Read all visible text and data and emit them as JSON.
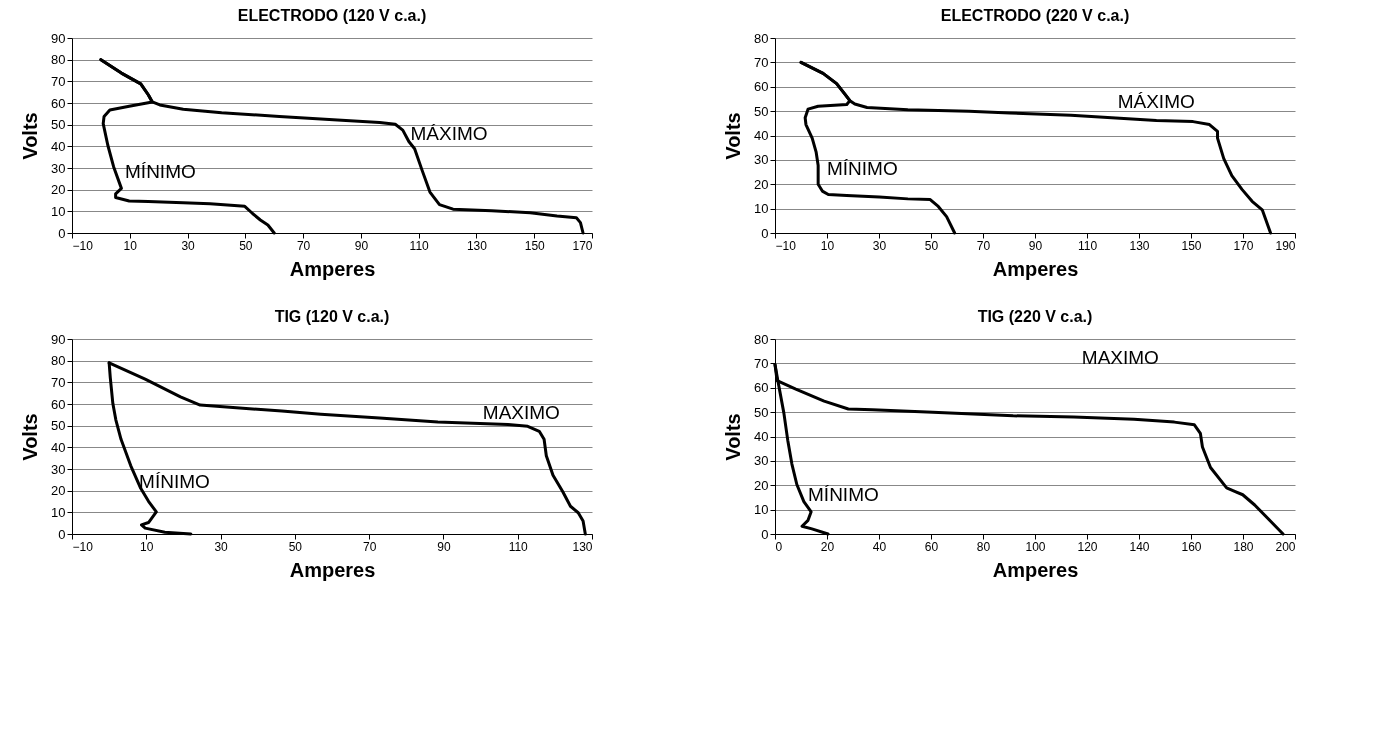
{
  "chart_data": [
    {
      "type": "line",
      "title": "ELECTRODO (120 V c.a.)",
      "xlabel": "Amperes",
      "ylabel": "Volts",
      "xlim": [
        -10,
        170
      ],
      "xticks": [
        -10,
        10,
        30,
        50,
        70,
        90,
        110,
        130,
        150,
        170
      ],
      "ylim": [
        0,
        90
      ],
      "yticks": [
        0,
        10,
        20,
        30,
        40,
        50,
        60,
        70,
        80,
        90
      ],
      "grid": "y",
      "legend": false,
      "marker": "none",
      "line_style": "solid",
      "series": [
        {
          "name": "MÍNIMO",
          "color": "#000000",
          "x": [
            0,
            7.1,
            13.8,
            16.4,
            17.8,
            9.8,
            3.1,
            1.1,
            0.8,
            2.4,
            4.4,
            7.1,
            5.1,
            5.1,
            9.8,
            16.4,
            28.5,
            37.8,
            49.8,
            52.5,
            55.2,
            57.8,
            60
          ],
          "values": [
            80,
            73.8,
            68.8,
            63.8,
            60.5,
            58.5,
            56.8,
            53.8,
            50.5,
            40.5,
            30.6,
            20.6,
            18.1,
            16.4,
            14.8,
            14.5,
            14,
            13.5,
            12.3,
            9,
            6,
            3.7,
            0
          ]
        },
        {
          "name": "MÁXIMO",
          "color": "#000000",
          "x": [
            0,
            7.1,
            13.8,
            16.4,
            17.8,
            20.4,
            28.5,
            41.8,
            61.8,
            81.9,
            96.5,
            101.9,
            104.5,
            106.6,
            108.6,
            111.2,
            113.9,
            117.2,
            121.9,
            135.3,
            148.6,
            157.9,
            164.6,
            166,
            166.9
          ],
          "values": [
            80,
            73.8,
            68.8,
            63.8,
            60.5,
            59.1,
            57.1,
            55.5,
            53.8,
            52.2,
            51,
            50.2,
            47.5,
            42.2,
            38.9,
            28.9,
            18.9,
            13.1,
            11,
            10.3,
            9.3,
            7.8,
            7,
            4.8,
            0
          ]
        }
      ]
    },
    {
      "type": "line",
      "title": "ELECTRODO (220 V c.a.)",
      "xlabel": "Amperes",
      "ylabel": "Volts",
      "xlim": [
        -10,
        190
      ],
      "xticks": [
        -10,
        10,
        30,
        50,
        70,
        90,
        110,
        130,
        150,
        170,
        190
      ],
      "ylim": [
        0,
        80
      ],
      "yticks": [
        0,
        10,
        20,
        30,
        40,
        50,
        60,
        70,
        80
      ],
      "grid": "y",
      "legend": false,
      "marker": "none",
      "line_style": "solid",
      "series": [
        {
          "name": "MÍNIMO",
          "color": "#000000",
          "x": [
            0,
            8.5,
            13.7,
            16.8,
            18.8,
            17.6,
            6.6,
            2.7,
            1.6,
            1.9,
            4.3,
            5.8,
            6.6,
            6.6,
            8.2,
            10.5,
            17.6,
            30.1,
            41.1,
            49.7,
            52.8,
            56,
            59.1
          ],
          "values": [
            70,
            65.5,
            61.3,
            57.1,
            54.3,
            52.7,
            52,
            50.8,
            47.3,
            44.5,
            38.9,
            33.3,
            27.7,
            20,
            17.2,
            15.8,
            15.4,
            14.8,
            14,
            13.7,
            10.9,
            6.7,
            0
          ]
        },
        {
          "name": "MÁXIMO",
          "color": "#000000",
          "x": [
            0,
            8.5,
            13.7,
            16.8,
            18.8,
            20.7,
            25.4,
            41.1,
            64.6,
            80.3,
            103.8,
            119.5,
            136.7,
            150.8,
            157.1,
            160.2,
            160.2,
            162.6,
            165.7,
            169.6,
            173.5,
            177.4,
            180.6
          ],
          "values": [
            70,
            65.5,
            61.3,
            57.1,
            54.3,
            52.9,
            51.5,
            50.6,
            49.9,
            49.2,
            48.3,
            47.3,
            46.2,
            45.7,
            44.5,
            41.7,
            38.9,
            30.5,
            23.5,
            17.9,
            13,
            9.5,
            0
          ]
        }
      ]
    },
    {
      "type": "line",
      "title": "TIG (120 V c.a.)",
      "xlabel": "Amperes",
      "ylabel": "Volts",
      "xlim": [
        -10,
        130
      ],
      "xticks": [
        -10,
        10,
        30,
        50,
        70,
        90,
        110,
        130
      ],
      "ylim": [
        0,
        90
      ],
      "yticks": [
        0,
        10,
        20,
        30,
        40,
        50,
        60,
        70,
        80,
        90
      ],
      "grid": "y",
      "legend": false,
      "marker": "none",
      "line_style": "solid",
      "series": [
        {
          "name": "MÍNIMO",
          "color": "#000000",
          "x": [
            0,
            0.3,
            1,
            1.8,
            3.2,
            5.8,
            8.5,
            10.6,
            12.7,
            10.6,
            8.7,
            9.7,
            15,
            22
          ],
          "values": [
            79,
            72.3,
            60.2,
            52.7,
            43.7,
            31.6,
            21.1,
            15.1,
            10.2,
            5.3,
            4.2,
            2.7,
            0.8,
            0
          ]
        },
        {
          "name": "MAXIMO",
          "color": "#000000",
          "x": [
            0,
            9.7,
            19.2,
            24.5,
            36,
            46.5,
            57,
            72.8,
            88.5,
            107.4,
            112.7,
            115.8,
            117.1,
            117.7,
            119.5,
            122.1,
            124.2,
            126.3,
            127.6,
            128.2
          ],
          "values": [
            79,
            71.5,
            63.3,
            59.5,
            58,
            56.8,
            55.3,
            53.5,
            51.7,
            50.5,
            49.7,
            47.4,
            43.7,
            36.1,
            27.1,
            19.6,
            12.8,
            9.8,
            6,
            0
          ]
        }
      ]
    },
    {
      "type": "line",
      "title": "TIG (220 V c.a.)",
      "xlabel": "Amperes",
      "ylabel": "Volts",
      "xlim": [
        0,
        200
      ],
      "xticks": [
        0,
        20,
        40,
        60,
        80,
        100,
        120,
        140,
        160,
        180,
        200
      ],
      "ylim": [
        0,
        80
      ],
      "yticks": [
        0,
        10,
        20,
        30,
        40,
        50,
        60,
        70,
        80
      ],
      "grid": "y",
      "legend": false,
      "marker": "none",
      "line_style": "solid",
      "series": [
        {
          "name": "MÍNIMO",
          "color": "#000000",
          "x": [
            0,
            1.1,
            3.4,
            4.9,
            6.5,
            8.4,
            11.1,
            13.9,
            12.7,
            10.4,
            14.2,
            20.4
          ],
          "values": [
            69.5,
            62.9,
            49.7,
            38.5,
            28.7,
            20.3,
            13.3,
            9.1,
            5.6,
            3.2,
            2.1,
            0
          ]
        },
        {
          "name": "MAXIMO",
          "color": "#000000",
          "x": [
            0,
            0.8,
            8,
            18.9,
            28.2,
            37.5,
            60.7,
            91.6,
            114.9,
            138.1,
            153.6,
            161.3,
            163.6,
            164.4,
            167.5,
            173.7,
            176.8,
            179.9,
            184.5,
            195.4
          ],
          "values": [
            69.5,
            62.9,
            59.4,
            54.5,
            51.3,
            51,
            49.9,
            48.5,
            48,
            47.1,
            45.9,
            44.8,
            41.3,
            35.7,
            27.3,
            18.9,
            17.5,
            16.1,
            11.9,
            0
          ]
        }
      ]
    }
  ]
}
